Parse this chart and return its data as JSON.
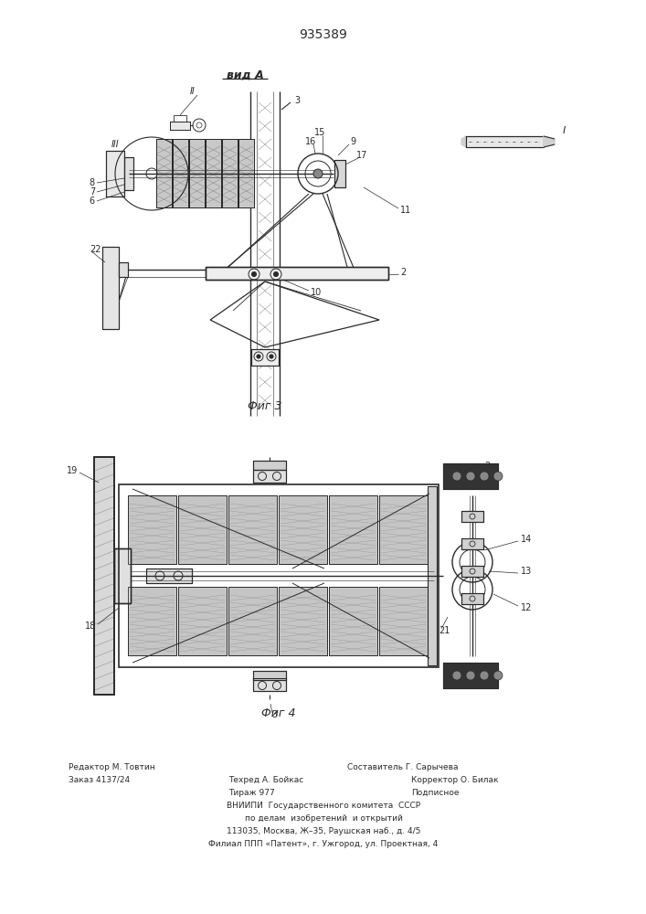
{
  "patent_number": "935389",
  "fig3_title": "вид A",
  "fig3_label": "Фиг 3",
  "fig4_label": "Фиг 4",
  "footer_line1_left": "Редактор М. Товтин",
  "footer_line1_right": "Составитель Г. Сарычева",
  "footer_line2_left": "Заказ 4137/24",
  "footer_line2_mid": "Техред А. Бойкас",
  "footer_line2_right": "Корректор О. Билак",
  "footer_line3_mid": "Тираж 977",
  "footer_line3_right": "Подписное",
  "footer_vniipи": "ВНИИПИ  Государственного комитета  СССР",
  "footer_po_delam": "по делам  изобретений  и открытий",
  "footer_address": "113035, Москва, Ж–35, Раушская наб., д. 4/5",
  "footer_filial": "Филиал ППП «Патент», г. Ужгород, ул. Проектная, 4",
  "bg_color": "#ffffff",
  "line_color": "#2a2a2a"
}
